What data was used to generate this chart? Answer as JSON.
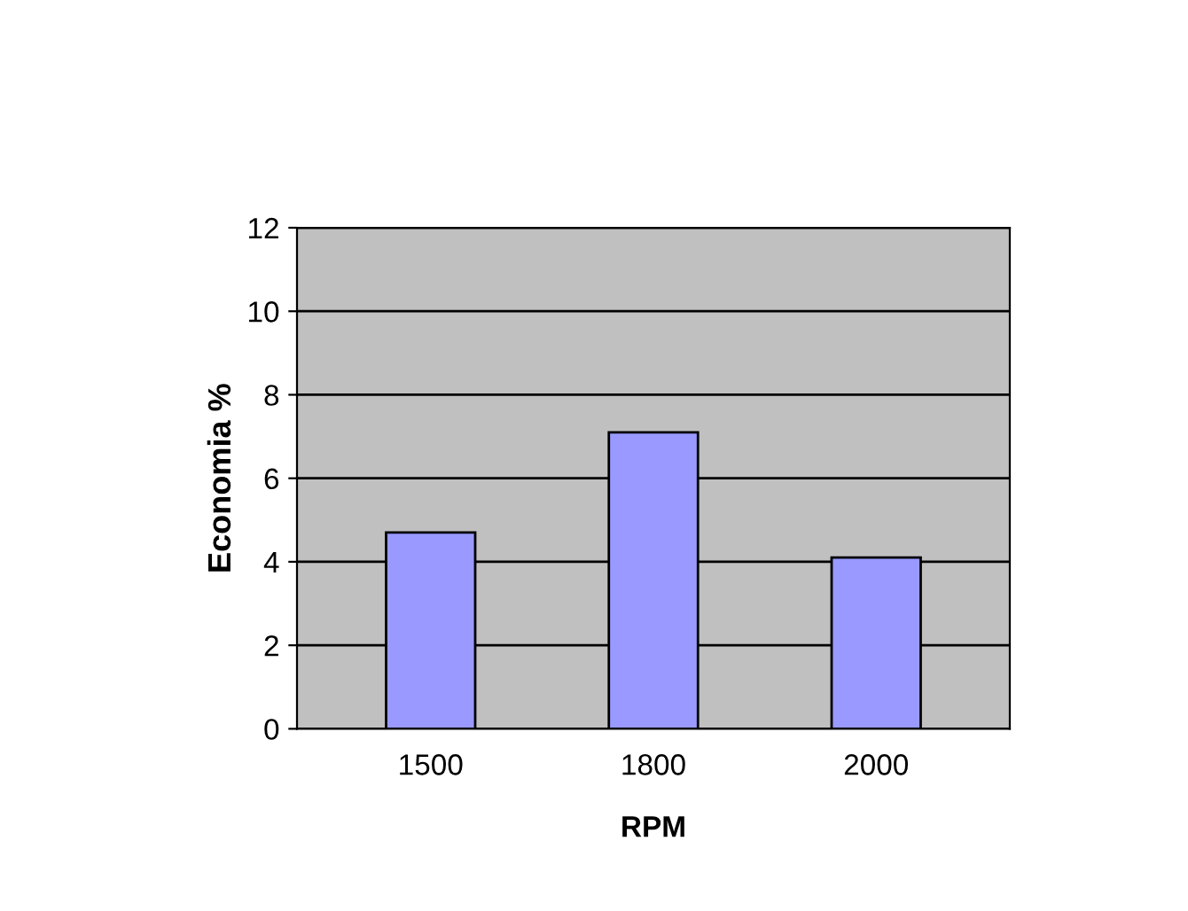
{
  "chart_data": {
    "type": "bar",
    "xlabel": "RPM",
    "ylabel": "Economia %",
    "categories": [
      "1500",
      "1800",
      "2000"
    ],
    "values": [
      4.7,
      7.1,
      4.1
    ],
    "color": "#9999ff",
    "ylim": [
      0,
      12
    ],
    "yticks": [
      0,
      2,
      4,
      6,
      8,
      10,
      12
    ],
    "grid": "y"
  }
}
